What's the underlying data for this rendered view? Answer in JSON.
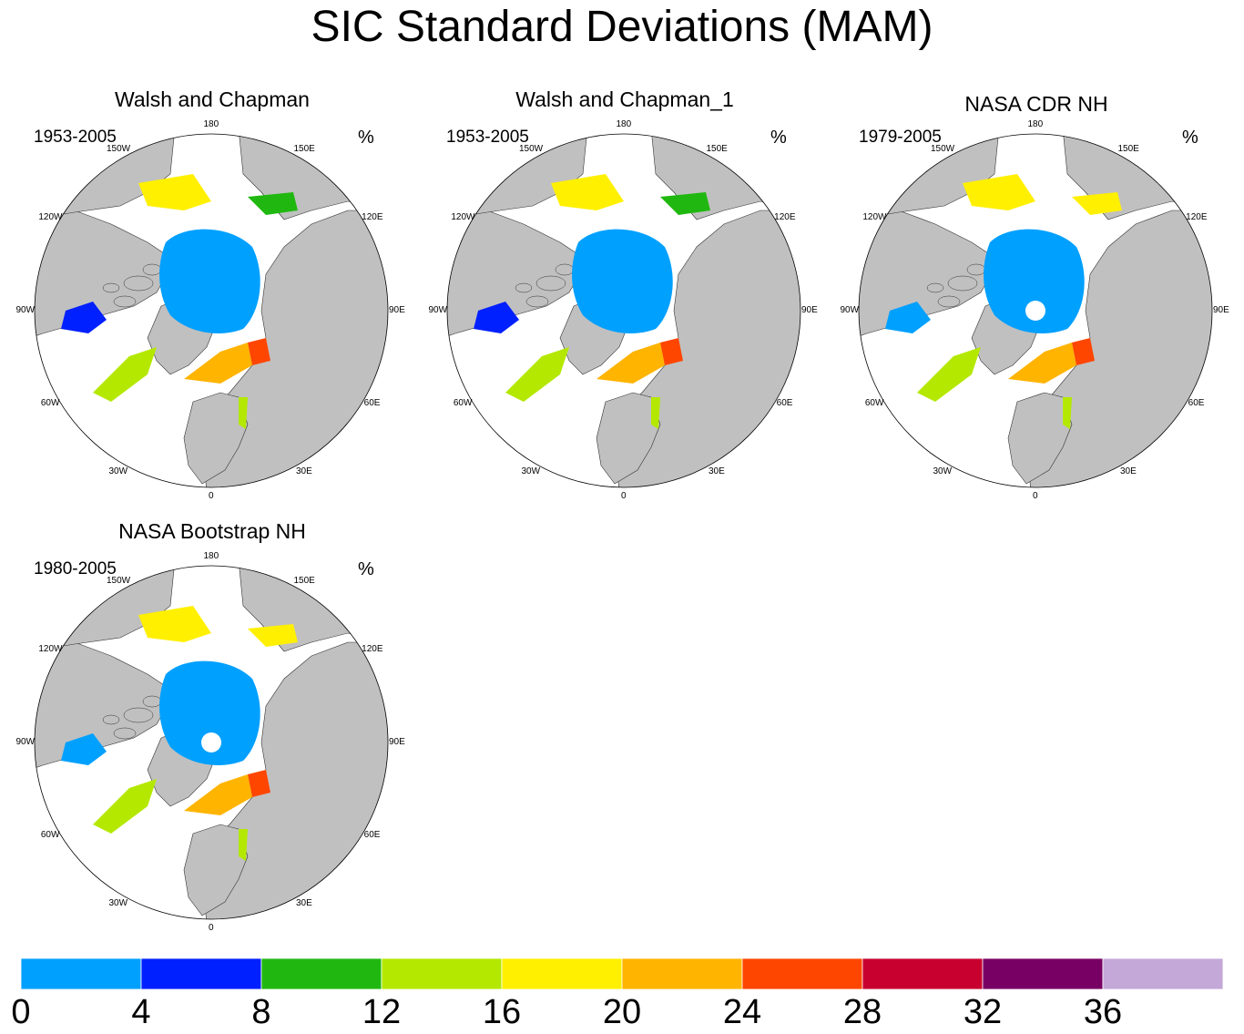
{
  "title": "SIC Standard Deviations (MAM)",
  "unit": "%",
  "panels": [
    {
      "title": "Walsh and Chapman",
      "period": "1953-2005",
      "pole_hole": false
    },
    {
      "title": "Walsh and Chapman_1",
      "period": "1953-2005",
      "pole_hole": false
    },
    {
      "title": "NASA CDR NH",
      "period": "1979-2005",
      "pole_hole": true
    },
    {
      "title": "NASA Bootstrap NH",
      "period": "1980-2005",
      "pole_hole": true
    }
  ],
  "longitude_labels": [
    "180",
    "150E",
    "120E",
    "90E",
    "60E",
    "30E",
    "0",
    "30W",
    "60W",
    "90W",
    "120W",
    "150W"
  ],
  "colorbar": {
    "ticks": [
      "0",
      "4",
      "8",
      "12",
      "16",
      "20",
      "24",
      "28",
      "32",
      "36"
    ],
    "colors": [
      "#00a0ff",
      "#0020ff",
      "#20b810",
      "#b4e800",
      "#fff000",
      "#ffb400",
      "#ff4600",
      "#c80030",
      "#780064",
      "#c4a8d8"
    ]
  },
  "colors": {
    "land": "#c0c0c0",
    "ocean": "#ffffff",
    "outline": "#000000"
  }
}
